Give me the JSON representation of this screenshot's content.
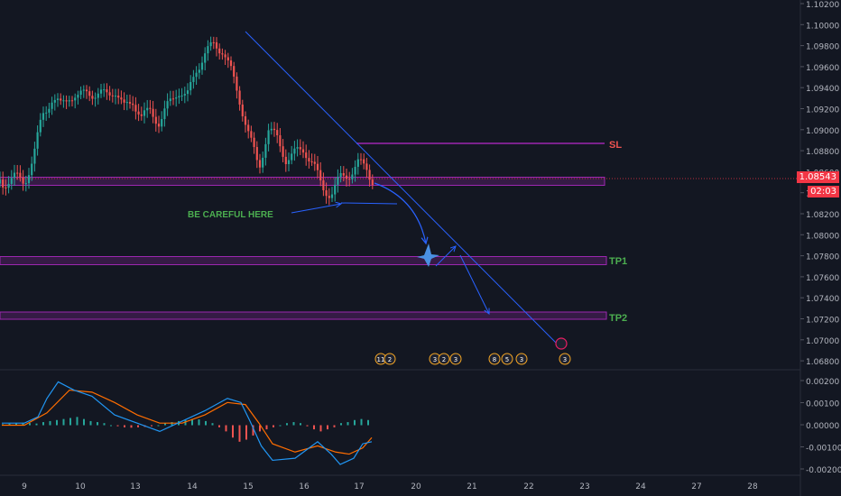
{
  "chart_data": {
    "type": "line",
    "title": "",
    "price_axis": {
      "ticks": [
        "1.10200",
        "1.10000",
        "1.09800",
        "1.09600",
        "1.09400",
        "1.09200",
        "1.09000",
        "1.08800",
        "1.08600",
        "1.08400",
        "1.08200",
        "1.08000",
        "1.07800",
        "1.07600",
        "1.07400",
        "1.07200",
        "1.07000",
        "1.06800"
      ],
      "last_price": "1.08543",
      "countdown": "02:03",
      "range": [
        1.0675,
        1.1025
      ]
    },
    "time_axis": {
      "ticks": [
        "9",
        "10",
        "13",
        "14",
        "15",
        "16",
        "17",
        "20",
        "21",
        "22",
        "23",
        "24",
        "27",
        "28"
      ]
    },
    "macd_axis": {
      "ticks": [
        "0.00200",
        "0.00100",
        "0.00000",
        "-0.00100",
        "-0.00200"
      ],
      "range": [
        -0.00225,
        0.00225
      ]
    },
    "price_path": [
      [
        0,
        1.085
      ],
      [
        0.6,
        1.0856
      ],
      [
        1.0,
        1.0852
      ],
      [
        1.4,
        1.0875
      ],
      [
        1.8,
        1.092
      ],
      [
        2.2,
        1.0935
      ],
      [
        2.6,
        1.0928
      ],
      [
        3.0,
        1.094
      ],
      [
        3.4,
        1.0935
      ],
      [
        3.8,
        1.0945
      ],
      [
        4.2,
        1.0938
      ],
      [
        4.6,
        1.094
      ],
      [
        5.0,
        1.0945
      ],
      [
        5.4,
        1.0925
      ],
      [
        5.8,
        1.0935
      ],
      [
        6.2,
        1.0915
      ],
      [
        6.6,
        1.0925
      ],
      [
        7.0,
        1.091
      ],
      [
        7.4,
        1.093
      ],
      [
        7.8,
        1.0945
      ],
      [
        8.2,
        1.0935
      ],
      [
        8.6,
        1.0965
      ],
      [
        9.0,
        1.098
      ],
      [
        9.4,
        1.099
      ],
      [
        9.8,
        1.0985
      ],
      [
        10.2,
        1.096
      ],
      [
        10.6,
        1.093
      ],
      [
        11.0,
        1.0895
      ],
      [
        11.4,
        1.0865
      ],
      [
        11.8,
        1.0905
      ],
      [
        12.2,
        1.0895
      ],
      [
        12.6,
        1.0875
      ],
      [
        13.0,
        1.088
      ],
      [
        13.4,
        1.0885
      ],
      [
        13.8,
        1.087
      ],
      [
        14.2,
        1.0845
      ],
      [
        14.6,
        1.084
      ],
      [
        15.0,
        1.0855
      ],
      [
        15.4,
        1.086
      ],
      [
        15.8,
        1.087
      ],
      [
        16.2,
        1.0865
      ],
      [
        16.4,
        1.0854
      ]
    ],
    "macd_line": [
      [
        0,
        0.0001
      ],
      [
        1.0,
        0.0001
      ],
      [
        1.6,
        0.0004
      ],
      [
        2.0,
        0.0013
      ],
      [
        2.5,
        0.0021
      ],
      [
        3.2,
        0.0017
      ],
      [
        4.0,
        0.0014
      ],
      [
        5.0,
        0.0005
      ],
      [
        6.0,
        0.0001
      ],
      [
        7.0,
        -0.0003
      ],
      [
        8.0,
        0.0002
      ],
      [
        9.0,
        0.0007
      ],
      [
        10.0,
        0.0013
      ],
      [
        10.6,
        0.0011
      ],
      [
        11.0,
        0.0002
      ],
      [
        11.5,
        -0.001
      ],
      [
        12.0,
        -0.0017
      ],
      [
        13.0,
        -0.0016
      ],
      [
        14.0,
        -0.0008
      ],
      [
        14.6,
        -0.0014
      ],
      [
        15.0,
        -0.0019
      ],
      [
        15.6,
        -0.0016
      ],
      [
        16.0,
        -0.0009
      ],
      [
        16.4,
        -0.0008
      ]
    ],
    "signal_line": [
      [
        0,
        0.0
      ],
      [
        1.0,
        0.0
      ],
      [
        2.0,
        0.0006
      ],
      [
        3.0,
        0.0017
      ],
      [
        4.0,
        0.0016
      ],
      [
        5.0,
        0.0011
      ],
      [
        6.0,
        0.0005
      ],
      [
        7.0,
        0.0001
      ],
      [
        8.0,
        0.0001
      ],
      [
        9.0,
        0.0005
      ],
      [
        10.0,
        0.0011
      ],
      [
        10.8,
        0.001
      ],
      [
        11.4,
        0.0001
      ],
      [
        12.0,
        -0.0009
      ],
      [
        13.0,
        -0.0013
      ],
      [
        14.0,
        -0.001
      ],
      [
        14.8,
        -0.0013
      ],
      [
        15.4,
        -0.0014
      ],
      [
        16.0,
        -0.0011
      ],
      [
        16.4,
        -0.0006
      ]
    ],
    "histogram": [
      5e-05,
      8e-05,
      0.0001,
      0.00012,
      0.0001,
      8e-05,
      0.00015,
      0.0002,
      0.00025,
      0.0003,
      0.00035,
      0.0004,
      0.0003,
      0.0002,
      0.00015,
      0.0001,
      0.0,
      -5e-05,
      -0.0001,
      -0.00012,
      -0.0001,
      -8e-05,
      -5e-05,
      0.0,
      0.0001,
      0.00015,
      0.0002,
      0.00025,
      0.0003,
      0.00028,
      0.0002,
      0.0001,
      -0.0001,
      -0.0003,
      -0.0006,
      -0.0008,
      -0.0007,
      -0.0005,
      -0.0003,
      -0.0002,
      -0.0001,
      0.0,
      0.0001,
      0.00015,
      0.0001,
      -5e-05,
      -0.0002,
      -0.0003,
      -0.0002,
      -0.0001,
      0.0001,
      0.00015,
      0.00025,
      0.0003,
      0.00025
    ],
    "levels": {
      "sl": {
        "label": "SL",
        "price": 1.0887
      },
      "tp1": {
        "label": "TP1",
        "price": 1.0778
      },
      "tp2": {
        "label": "TP2",
        "price": 1.0723
      },
      "support": {
        "price": 1.0848
      }
    },
    "annotation": "BE CAREFUL HERE",
    "event_markers": [
      "11",
      "2",
      "3",
      "2",
      "3",
      "8",
      "5",
      "3",
      "3"
    ],
    "colors": {
      "background": "#131722",
      "up": "#26a69a",
      "down": "#ef5350",
      "trendline": "#2962ff",
      "zone": "#9c27b0",
      "macd": "#2196f3",
      "signal": "#ff6d00",
      "sl_label": "#ef5350",
      "tp_label": "#4caf50",
      "note": "#4caf50",
      "price_box": "#f23645"
    }
  }
}
